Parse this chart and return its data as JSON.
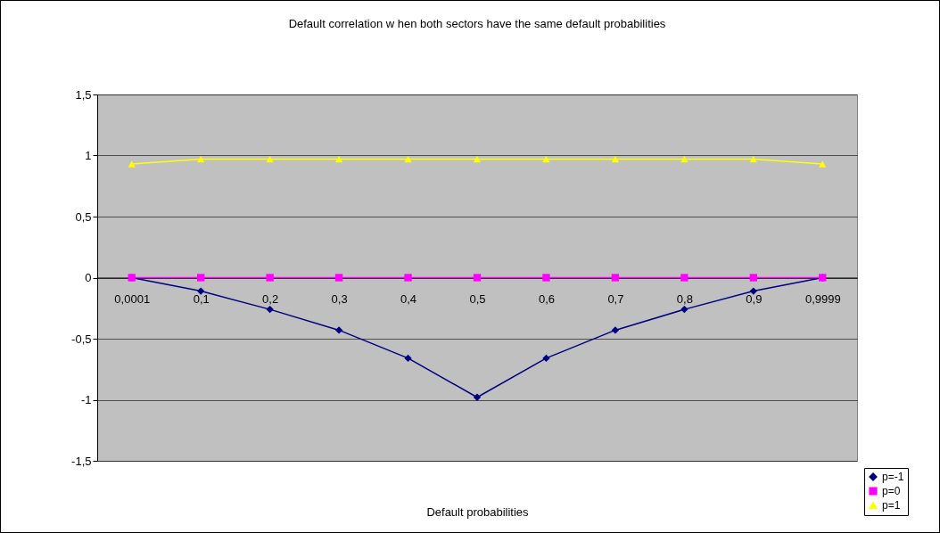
{
  "chart_data": {
    "type": "line",
    "title": "Default correlation w hen both sectors have the same default probabilities",
    "xlabel": "Default probabilities",
    "categories": [
      "0,0001",
      "0,1",
      "0,2",
      "0,3",
      "0,4",
      "0,5",
      "0,6",
      "0,7",
      "0,8",
      "0,9",
      "0,9999"
    ],
    "series": [
      {
        "name": "p=-1",
        "color": "#000080",
        "marker": "diamond",
        "values": [
          0,
          -0.11,
          -0.26,
          -0.43,
          -0.66,
          -0.98,
          -0.66,
          -0.43,
          -0.26,
          -0.11,
          0
        ]
      },
      {
        "name": "p=0",
        "color": "#ff00ff",
        "marker": "square",
        "values": [
          0,
          0,
          0,
          0,
          0,
          0,
          0,
          0,
          0,
          0,
          0
        ]
      },
      {
        "name": "p=1",
        "color": "#ffff00",
        "marker": "triangle",
        "values": [
          0.93,
          0.97,
          0.97,
          0.97,
          0.97,
          0.97,
          0.97,
          0.97,
          0.97,
          0.97,
          0.93
        ]
      }
    ],
    "ylim": [
      -1.5,
      1.5
    ],
    "yticks": [
      {
        "value": -1.5,
        "label": "-1,5"
      },
      -1,
      {
        "value": -0.5,
        "label": "-0,5"
      },
      0,
      {
        "value": 0.5,
        "label": "0,5"
      },
      1,
      {
        "value": 1.5,
        "label": "1,5"
      }
    ],
    "grid": "y",
    "legend": "bottom right",
    "line_style": "solid"
  }
}
